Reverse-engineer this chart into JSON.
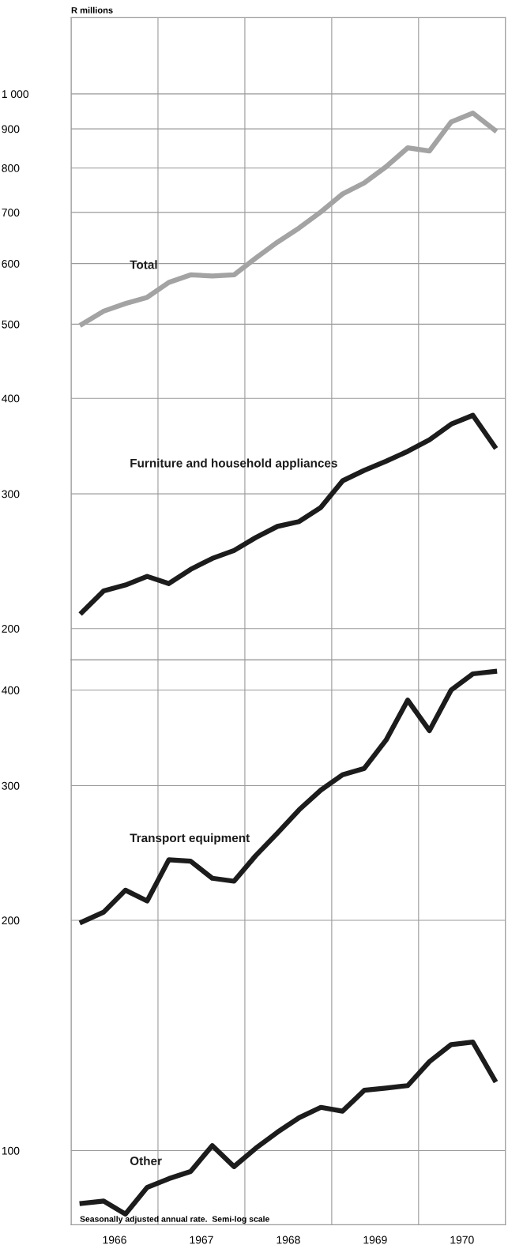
{
  "chart_data": [
    {
      "type": "line",
      "ylabel": "R millions",
      "log": true,
      "grid": true,
      "legend": false,
      "marker": "none",
      "line_style": "solid",
      "tick_labels": "y",
      "x": [
        1966.125,
        1966.375,
        1966.625,
        1966.875,
        1967.125,
        1967.375,
        1967.625,
        1967.875,
        1968.125,
        1968.375,
        1968.625,
        1968.875,
        1969.125,
        1969.375,
        1969.625,
        1969.875,
        1970.125,
        1970.375,
        1970.625,
        1970.875
      ],
      "xlim": [
        1966,
        1971
      ],
      "xticks": [
        {
          "value": 1966,
          "label": null
        },
        {
          "value": 1967,
          "label": null
        },
        {
          "value": 1968,
          "label": null
        },
        {
          "value": 1969,
          "label": null
        },
        {
          "value": 1970,
          "label": null
        },
        {
          "value": 1971,
          "label": null
        }
      ],
      "ylim": [
        182,
        1258
      ],
      "yticks": [
        200,
        300,
        400,
        500,
        600,
        700,
        800,
        900,
        {
          "value": 1000,
          "label": "1 000"
        }
      ],
      "series": [
        {
          "name": "Total",
          "color": "#a3a3a3",
          "values": [
            500,
            520,
            532,
            542,
            567,
            580,
            578,
            580,
            610,
            640,
            668,
            701,
            740,
            765,
            803,
            850,
            842,
            919,
            944,
            897
          ]
        },
        {
          "name": "Furniture and household appliances",
          "color": "#1c1c1c",
          "values": [
            210,
            224,
            228,
            234,
            229,
            239,
            247,
            253,
            263,
            272,
            276,
            288,
            312,
            322,
            331,
            341,
            353,
            370,
            380,
            346
          ]
        }
      ]
    },
    {
      "type": "line",
      "log": true,
      "grid": true,
      "legend": false,
      "marker": "none",
      "line_style": "solid",
      "x": [
        1966.125,
        1966.375,
        1966.625,
        1966.875,
        1967.125,
        1967.375,
        1967.625,
        1967.875,
        1968.125,
        1968.375,
        1968.625,
        1968.875,
        1969.125,
        1969.375,
        1969.625,
        1969.875,
        1970.125,
        1970.375,
        1970.625,
        1970.875
      ],
      "xlim": [
        1966,
        1971
      ],
      "xticks": [
        {
          "value": 1966,
          "label": null
        },
        {
          "value": 1966.5,
          "label": "1966"
        },
        {
          "value": 1967,
          "label": null
        },
        {
          "value": 1967.5,
          "label": "1967"
        },
        {
          "value": 1968,
          "label": null
        },
        {
          "value": 1968.5,
          "label": "1968"
        },
        {
          "value": 1969,
          "label": null
        },
        {
          "value": 1969.5,
          "label": "1969"
        },
        {
          "value": 1970,
          "label": null
        },
        {
          "value": 1970.5,
          "label": "1970"
        },
        {
          "value": 1971,
          "label": null
        }
      ],
      "ylim": [
        80,
        438
      ],
      "yticks": [
        100,
        200,
        300,
        400
      ],
      "annotations": [
        "Seasonally adjusted annual rate.  Semi-log scale"
      ],
      "series": [
        {
          "name": "Transport equipment",
          "color": "#1c1c1c",
          "values": [
            199,
            205,
            219,
            212,
            240,
            239,
            227,
            225,
            243,
            260,
            279,
            296,
            310,
            316,
            344,
            388,
            354,
            400,
            420,
            423
          ]
        },
        {
          "name": "Other",
          "color": "#1c1c1c",
          "values": [
            85.3,
            85.9,
            82.6,
            89.5,
            91.9,
            93.9,
            101.5,
            95.3,
            100.7,
            105.7,
            110.4,
            113.9,
            112.6,
            119.9,
            120.7,
            121.6,
            130.7,
            137.6,
            138.6,
            123.7
          ]
        }
      ]
    }
  ]
}
